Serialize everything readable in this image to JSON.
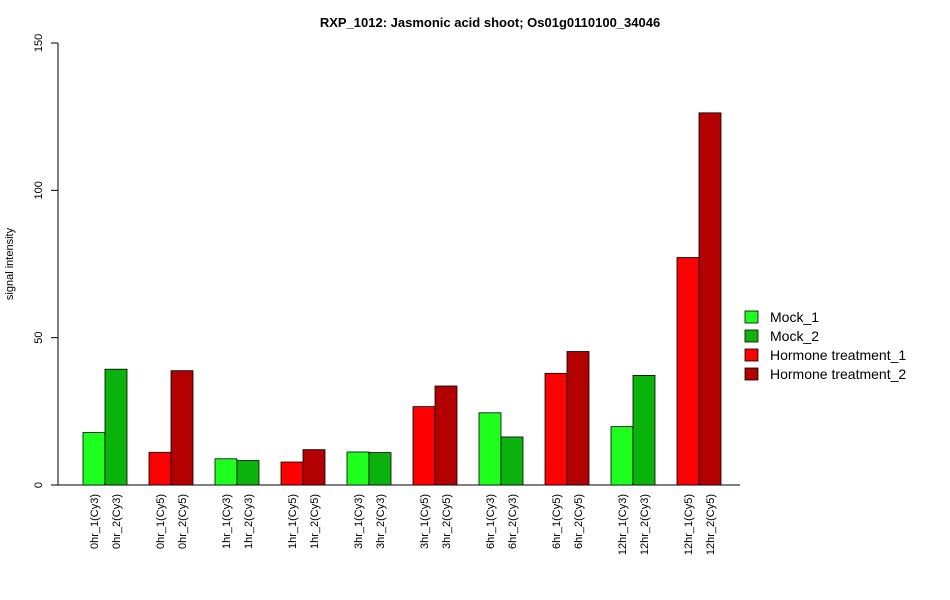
{
  "chart_data": {
    "type": "bar",
    "title": "RXP_1012: Jasmonic acid shoot; Os01g0110100_34046",
    "xlabel": "",
    "ylabel": "signal intensity",
    "ylim": [
      0,
      150
    ],
    "yticks": [
      0,
      50,
      100,
      150
    ],
    "grid": false,
    "legend_position": "right",
    "series_styles": [
      {
        "name": "Mock_1",
        "color": "#1eff1e"
      },
      {
        "name": "Mock_2",
        "color": "#0db30d"
      },
      {
        "name": "Hormone treatment_1",
        "color": "#ff0000"
      },
      {
        "name": "Hormone treatment_2",
        "color": "#b30000"
      }
    ],
    "bars": [
      {
        "label": "0hr_1(Cy3)",
        "value": 17.8,
        "series": 0
      },
      {
        "label": "0hr_2(Cy3)",
        "value": 39.3,
        "series": 1
      },
      {
        "label": "0hr_1(Cy5)",
        "value": 11.1,
        "series": 2
      },
      {
        "label": "0hr_2(Cy5)",
        "value": 38.8,
        "series": 3
      },
      {
        "label": "1hr_1(Cy3)",
        "value": 8.9,
        "series": 0
      },
      {
        "label": "1hr_2(Cy3)",
        "value": 8.3,
        "series": 1
      },
      {
        "label": "1hr_1(Cy5)",
        "value": 7.8,
        "series": 2
      },
      {
        "label": "1hr_2(Cy5)",
        "value": 12.0,
        "series": 3
      },
      {
        "label": "3hr_1(Cy3)",
        "value": 11.2,
        "series": 0
      },
      {
        "label": "3hr_2(Cy3)",
        "value": 11.0,
        "series": 1
      },
      {
        "label": "3hr_1(Cy5)",
        "value": 26.6,
        "series": 2
      },
      {
        "label": "3hr_2(Cy5)",
        "value": 33.6,
        "series": 3
      },
      {
        "label": "6hr_1(Cy3)",
        "value": 24.5,
        "series": 0
      },
      {
        "label": "6hr_2(Cy3)",
        "value": 16.3,
        "series": 1
      },
      {
        "label": "6hr_1(Cy5)",
        "value": 37.9,
        "series": 2
      },
      {
        "label": "6hr_2(Cy5)",
        "value": 45.3,
        "series": 3
      },
      {
        "label": "12hr_1(Cy3)",
        "value": 19.8,
        "series": 0
      },
      {
        "label": "12hr_2(Cy3)",
        "value": 37.2,
        "series": 1
      },
      {
        "label": "12hr_1(Cy5)",
        "value": 77.2,
        "series": 2
      },
      {
        "label": "12hr_2(Cy5)",
        "value": 126.3,
        "series": 3
      }
    ]
  }
}
